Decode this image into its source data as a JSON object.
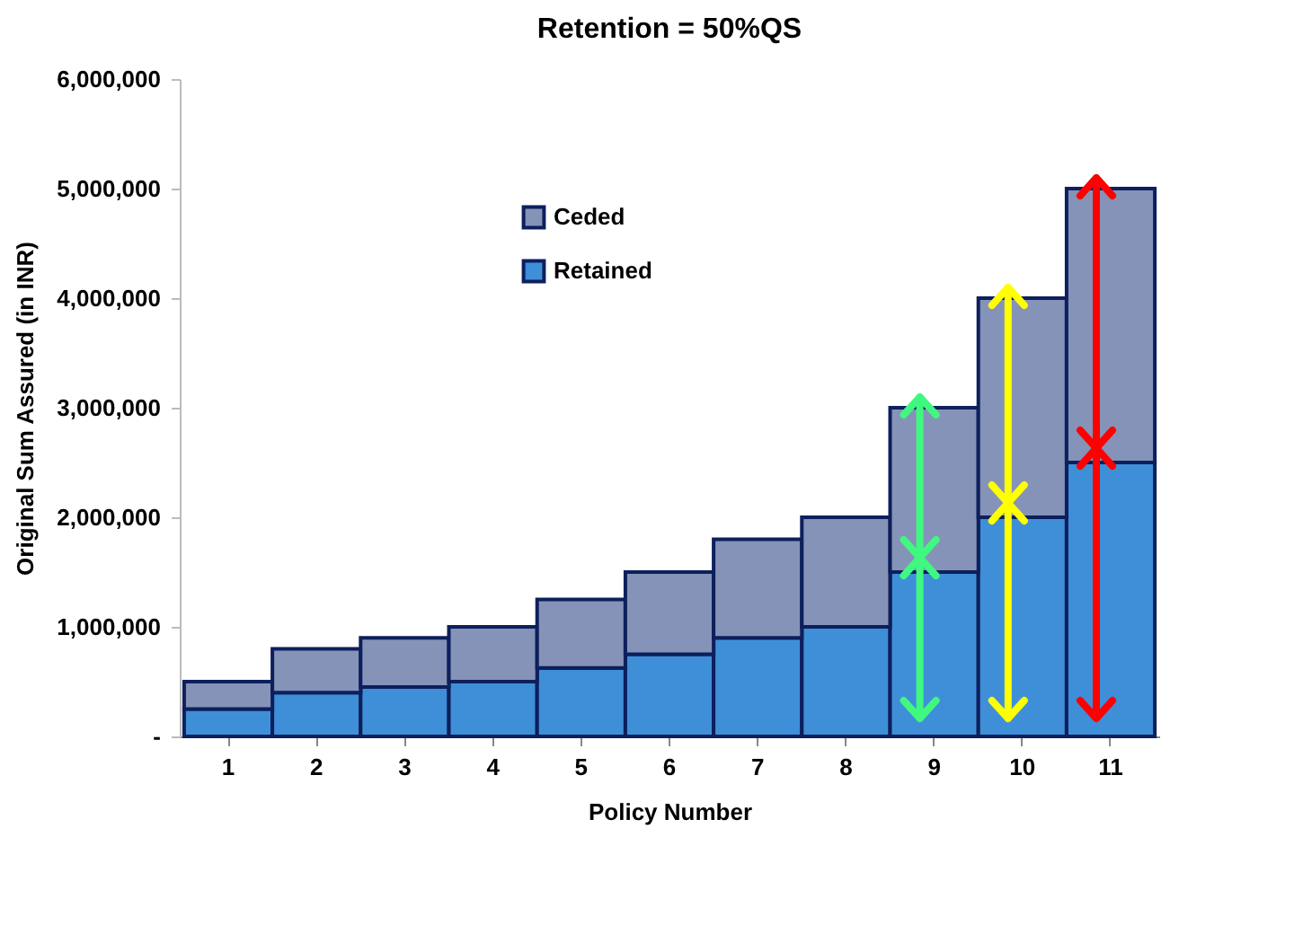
{
  "chart_data": {
    "type": "bar",
    "title": "Retention = 50%QS",
    "xlabel": "Policy Number",
    "ylabel": "Original Sum Assured (in INR)",
    "categories": [
      "1",
      "2",
      "3",
      "4",
      "5",
      "6",
      "7",
      "8",
      "9",
      "10",
      "11"
    ],
    "stacked": true,
    "series": [
      {
        "name": "Retained",
        "color": "#3f8fd8",
        "values": [
          250000,
          400000,
          450000,
          500000,
          625000,
          750000,
          900000,
          1000000,
          1500000,
          2000000,
          2500000
        ]
      },
      {
        "name": "Ceded",
        "color": "#8593b8",
        "values": [
          250000,
          400000,
          450000,
          500000,
          625000,
          750000,
          900000,
          1000000,
          1500000,
          2000000,
          2500000
        ]
      }
    ],
    "ylim": [
      0,
      6000000
    ],
    "yticks": [
      {
        "value": 0,
        "label": "-"
      },
      {
        "value": 1000000,
        "label": "1,000,000"
      },
      {
        "value": 2000000,
        "label": "2,000,000"
      },
      {
        "value": 3000000,
        "label": "3,000,000"
      },
      {
        "value": 4000000,
        "label": "4,000,000"
      },
      {
        "value": 5000000,
        "label": "5,000,000"
      },
      {
        "value": 6000000,
        "label": "6,000,000"
      }
    ],
    "grid": false,
    "legend": "top left"
  }
}
